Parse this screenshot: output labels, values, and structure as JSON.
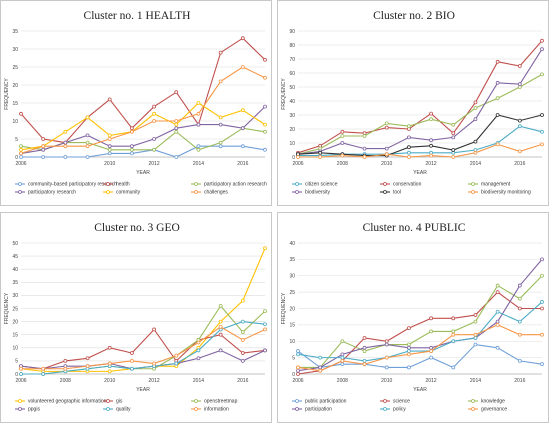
{
  "chart_data": [
    {
      "type": "line",
      "title": "Cluster no. 1 HEALTH",
      "xlabel": "YEAR",
      "ylabel": "FREQUENCY",
      "xlim": [
        2006,
        2017
      ],
      "ylim": [
        0,
        35
      ],
      "yticks": [
        0,
        5,
        10,
        15,
        20,
        25,
        30,
        35
      ],
      "xticks": [
        2006,
        2010,
        2012,
        2014,
        2016
      ],
      "grid": true,
      "legend": "bottom",
      "series": [
        {
          "name": "community-based participatory research",
          "color": "#6f9fd8",
          "x": [
            2006,
            2007,
            2008,
            2009,
            2010,
            2011,
            2012,
            2013,
            2014,
            2015,
            2016,
            2017
          ],
          "y": [
            0,
            0,
            0,
            0,
            1,
            1,
            2,
            0,
            3,
            3,
            3,
            2
          ]
        },
        {
          "name": "health",
          "color": "#c0504d",
          "x": [
            2006,
            2007,
            2008,
            2009,
            2010,
            2011,
            2012,
            2013,
            2014,
            2015,
            2016,
            2017
          ],
          "y": [
            12,
            5,
            4,
            11,
            16,
            8,
            14,
            18,
            9,
            29,
            33,
            27
          ]
        },
        {
          "name": "participatory action research",
          "color": "#9bbb59",
          "x": [
            2006,
            2007,
            2008,
            2009,
            2010,
            2011,
            2012,
            2013,
            2014,
            2015,
            2016,
            2017
          ],
          "y": [
            3,
            2,
            4,
            4,
            2,
            2,
            2,
            7,
            2,
            4,
            8,
            7
          ]
        },
        {
          "name": "participatory research",
          "color": "#8064a2",
          "x": [
            2006,
            2007,
            2008,
            2009,
            2010,
            2011,
            2012,
            2013,
            2014,
            2015,
            2016,
            2017
          ],
          "y": [
            1,
            2,
            4,
            6,
            3,
            3,
            5,
            8,
            9,
            9,
            8,
            14
          ]
        },
        {
          "name": "community",
          "color": "#ffc000",
          "x": [
            2006,
            2007,
            2008,
            2009,
            2010,
            2011,
            2012,
            2013,
            2014,
            2015,
            2016,
            2017
          ],
          "y": [
            2,
            3,
            7,
            11,
            6,
            7,
            12,
            9,
            15,
            11,
            13,
            9
          ]
        },
        {
          "name": "challenges",
          "color": "#f79646",
          "x": [
            2006,
            2007,
            2008,
            2009,
            2010,
            2011,
            2012,
            2013,
            2014,
            2015,
            2016,
            2017
          ],
          "y": [
            1,
            3,
            3,
            3,
            5,
            7,
            10,
            10,
            12,
            21,
            25,
            22
          ]
        }
      ]
    },
    {
      "type": "line",
      "title": "Cluster no. 2 BIO",
      "xlabel": "YEAR",
      "ylabel": "FREQUENCY",
      "xlim": [
        2006,
        2017
      ],
      "ylim": [
        0,
        90
      ],
      "yticks": [
        0,
        10,
        20,
        30,
        40,
        50,
        60,
        70,
        80,
        90
      ],
      "xticks": [
        2006,
        2008,
        2010,
        2012,
        2014,
        2016
      ],
      "grid": true,
      "legend": "bottom",
      "series": [
        {
          "name": "citizen science",
          "color": "#4bacc6",
          "x": [
            2006,
            2007,
            2008,
            2009,
            2010,
            2011,
            2012,
            2013,
            2014,
            2015,
            2016,
            2017
          ],
          "y": [
            1,
            1,
            2,
            2,
            2,
            3,
            3,
            3,
            5,
            10,
            22,
            18
          ]
        },
        {
          "name": "conservation",
          "color": "#c0504d",
          "x": [
            2006,
            2007,
            2008,
            2009,
            2010,
            2011,
            2012,
            2013,
            2014,
            2015,
            2016,
            2017
          ],
          "y": [
            3,
            8,
            18,
            17,
            21,
            20,
            31,
            17,
            39,
            68,
            65,
            83
          ]
        },
        {
          "name": "management",
          "color": "#9bbb59",
          "x": [
            2006,
            2007,
            2008,
            2009,
            2010,
            2011,
            2012,
            2013,
            2014,
            2015,
            2016,
            2017
          ],
          "y": [
            2,
            6,
            15,
            15,
            24,
            22,
            27,
            23,
            35,
            42,
            50,
            59
          ]
        },
        {
          "name": "biodiversity",
          "color": "#8064a2",
          "x": [
            2006,
            2007,
            2008,
            2009,
            2010,
            2011,
            2012,
            2013,
            2014,
            2015,
            2016,
            2017
          ],
          "y": [
            2,
            4,
            10,
            6,
            6,
            14,
            12,
            14,
            27,
            53,
            52,
            77
          ]
        },
        {
          "name": "tool",
          "color": "#333333",
          "x": [
            2006,
            2007,
            2008,
            2009,
            2010,
            2011,
            2012,
            2013,
            2014,
            2015,
            2016,
            2017
          ],
          "y": [
            2,
            3,
            2,
            1,
            1,
            7,
            8,
            5,
            11,
            30,
            26,
            30
          ]
        },
        {
          "name": "biodiversity monitoring",
          "color": "#f79646",
          "x": [
            2006,
            2007,
            2008,
            2009,
            2010,
            2011,
            2012,
            2013,
            2014,
            2015,
            2016,
            2017
          ],
          "y": [
            0,
            0,
            1,
            0,
            2,
            0,
            1,
            0,
            3,
            9,
            4,
            9
          ]
        }
      ]
    },
    {
      "type": "line",
      "title": "Cluster no. 3 GEO",
      "xlabel": "YEAR",
      "ylabel": "FREQUENCY",
      "xlim": [
        2006,
        2017
      ],
      "ylim": [
        0,
        50
      ],
      "yticks": [
        0,
        5,
        10,
        15,
        20,
        25,
        30,
        35,
        40,
        45,
        50
      ],
      "xticks": [
        2006,
        2008,
        2010,
        2012,
        2014,
        2016
      ],
      "grid": true,
      "legend": "bottom",
      "series": [
        {
          "name": "volunteered geographic information",
          "color": "#ffc000",
          "x": [
            2006,
            2007,
            2008,
            2009,
            2010,
            2011,
            2012,
            2013,
            2014,
            2015,
            2016,
            2017
          ],
          "y": [
            2,
            1,
            1,
            1,
            1,
            2,
            3,
            3,
            10,
            20,
            28,
            48
          ]
        },
        {
          "name": "gis",
          "color": "#c0504d",
          "x": [
            2006,
            2007,
            2008,
            2009,
            2010,
            2011,
            2012,
            2013,
            2014,
            2015,
            2016,
            2017
          ],
          "y": [
            3,
            2,
            5,
            6,
            10,
            8,
            17,
            5,
            13,
            15,
            8,
            9
          ]
        },
        {
          "name": "openstreetmap",
          "color": "#9bbb59",
          "x": [
            2006,
            2007,
            2008,
            2009,
            2010,
            2011,
            2012,
            2013,
            2014,
            2015,
            2016,
            2017
          ],
          "y": [
            0,
            0,
            1,
            2,
            3,
            2,
            2,
            7,
            13,
            26,
            16,
            24
          ]
        },
        {
          "name": "ppgis",
          "color": "#8064a2",
          "x": [
            2006,
            2007,
            2008,
            2009,
            2010,
            2011,
            2012,
            2013,
            2014,
            2015,
            2016,
            2017
          ],
          "y": [
            3,
            2,
            3,
            3,
            4,
            2,
            3,
            4,
            6,
            9,
            5,
            9
          ]
        },
        {
          "name": "quality",
          "color": "#4bacc6",
          "x": [
            2006,
            2007,
            2008,
            2009,
            2010,
            2011,
            2012,
            2013,
            2014,
            2015,
            2016,
            2017
          ],
          "y": [
            0,
            0,
            1,
            2,
            3,
            2,
            3,
            4,
            9,
            17,
            20,
            19
          ]
        },
        {
          "name": "information",
          "color": "#f79646",
          "x": [
            2006,
            2007,
            2008,
            2009,
            2010,
            2011,
            2012,
            2013,
            2014,
            2015,
            2016,
            2017
          ],
          "y": [
            2,
            2,
            2,
            3,
            4,
            5,
            4,
            7,
            12,
            18,
            13,
            17
          ]
        }
      ]
    },
    {
      "type": "line",
      "title": "Cluster no. 4 PUBLIC",
      "xlabel": "YEAR",
      "ylabel": "FREQUENCY",
      "xlim": [
        2006,
        2017
      ],
      "ylim": [
        0,
        40
      ],
      "yticks": [
        0,
        5,
        10,
        15,
        20,
        25,
        30,
        35,
        40
      ],
      "xticks": [
        2006,
        2008,
        2010,
        2012,
        2014,
        2016
      ],
      "grid": true,
      "legend": "bottom",
      "series": [
        {
          "name": "public participation",
          "color": "#6f9fd8",
          "x": [
            2006,
            2007,
            2008,
            2009,
            2010,
            2011,
            2012,
            2013,
            2014,
            2015,
            2016,
            2017
          ],
          "y": [
            7,
            2,
            3,
            3,
            2,
            2,
            5,
            2,
            9,
            8,
            4,
            3
          ]
        },
        {
          "name": "science",
          "color": "#c0504d",
          "x": [
            2006,
            2007,
            2008,
            2009,
            2010,
            2011,
            2012,
            2013,
            2014,
            2015,
            2016,
            2017
          ],
          "y": [
            0,
            1,
            4,
            11,
            10,
            14,
            17,
            17,
            18,
            25,
            20,
            20
          ]
        },
        {
          "name": "knowledge",
          "color": "#9bbb59",
          "x": [
            2006,
            2007,
            2008,
            2009,
            2010,
            2011,
            2012,
            2013,
            2014,
            2015,
            2016,
            2017
          ],
          "y": [
            2,
            2,
            10,
            7,
            9,
            9,
            13,
            13,
            16,
            27,
            23,
            30
          ]
        },
        {
          "name": "participation",
          "color": "#8064a2",
          "x": [
            2006,
            2007,
            2008,
            2009,
            2010,
            2011,
            2012,
            2013,
            2014,
            2015,
            2016,
            2017
          ],
          "y": [
            1,
            2,
            6,
            8,
            9,
            8,
            8,
            10,
            11,
            16,
            27,
            35
          ]
        },
        {
          "name": "policy",
          "color": "#4bacc6",
          "x": [
            2006,
            2007,
            2008,
            2009,
            2010,
            2011,
            2012,
            2013,
            2014,
            2015,
            2016,
            2017
          ],
          "y": [
            6,
            5,
            5,
            4,
            5,
            7,
            7,
            10,
            11,
            19,
            16,
            22
          ]
        },
        {
          "name": "governance",
          "color": "#f79646",
          "x": [
            2006,
            2007,
            2008,
            2009,
            2010,
            2011,
            2012,
            2013,
            2014,
            2015,
            2016,
            2017
          ],
          "y": [
            2,
            1,
            4,
            3,
            5,
            6,
            7,
            12,
            12,
            15,
            12,
            12
          ]
        }
      ]
    }
  ]
}
